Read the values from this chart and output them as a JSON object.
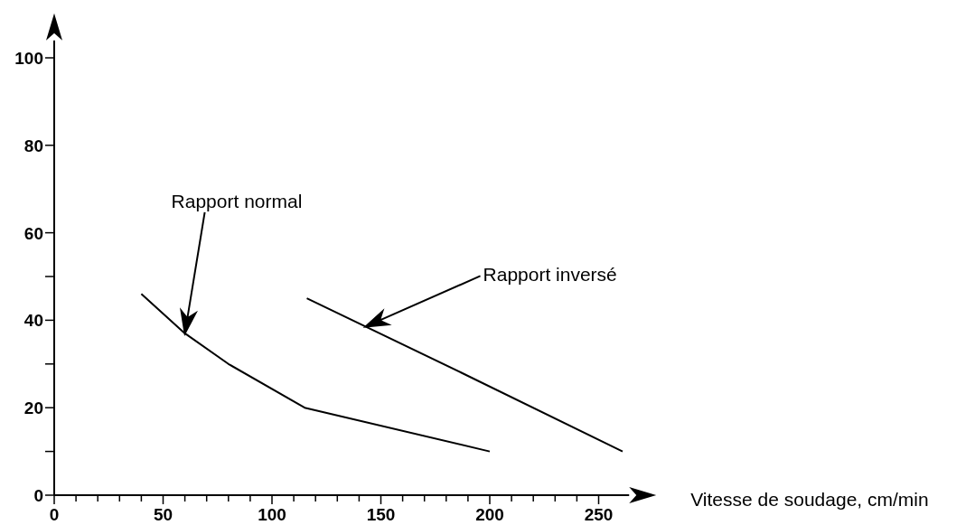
{
  "chart_data": {
    "type": "line",
    "xlabel": "Vitesse de soudage, cm/min",
    "xlim": [
      0,
      264
    ],
    "ylim": [
      0,
      104
    ],
    "xticks": [
      0,
      {
        "value": 10,
        "label": null
      },
      {
        "value": 20,
        "label": null
      },
      {
        "value": 30,
        "label": null
      },
      {
        "value": 40,
        "label": null
      },
      50,
      {
        "value": 60,
        "label": null
      },
      {
        "value": 70,
        "label": null
      },
      {
        "value": 80,
        "label": null
      },
      {
        "value": 90,
        "label": null
      },
      100,
      {
        "value": 110,
        "label": null
      },
      {
        "value": 120,
        "label": null
      },
      {
        "value": 130,
        "label": null
      },
      {
        "value": 140,
        "label": null
      },
      150,
      {
        "value": 160,
        "label": null
      },
      {
        "value": 170,
        "label": null
      },
      {
        "value": 180,
        "label": null
      },
      {
        "value": 190,
        "label": null
      },
      200,
      {
        "value": 210,
        "label": null
      },
      {
        "value": 220,
        "label": null
      },
      {
        "value": 230,
        "label": null
      },
      {
        "value": 240,
        "label": null
      },
      250
    ],
    "yticks": [
      0,
      {
        "value": 10,
        "label": null
      },
      20,
      {
        "value": 30,
        "label": null
      },
      40,
      {
        "value": 50,
        "label": null
      },
      60,
      80,
      100
    ],
    "series": [
      {
        "name": "Rapport normal",
        "color": "#000000",
        "x": [
          40,
          60,
          80,
          115,
          200
        ],
        "values": [
          46,
          37,
          30,
          20,
          10
        ]
      },
      {
        "name": "Rapport inversé",
        "color": "#000000",
        "x": [
          116,
          187,
          261
        ],
        "values": [
          45,
          28,
          10
        ]
      }
    ],
    "marker": "none",
    "line_style": "solid",
    "grid": false
  }
}
